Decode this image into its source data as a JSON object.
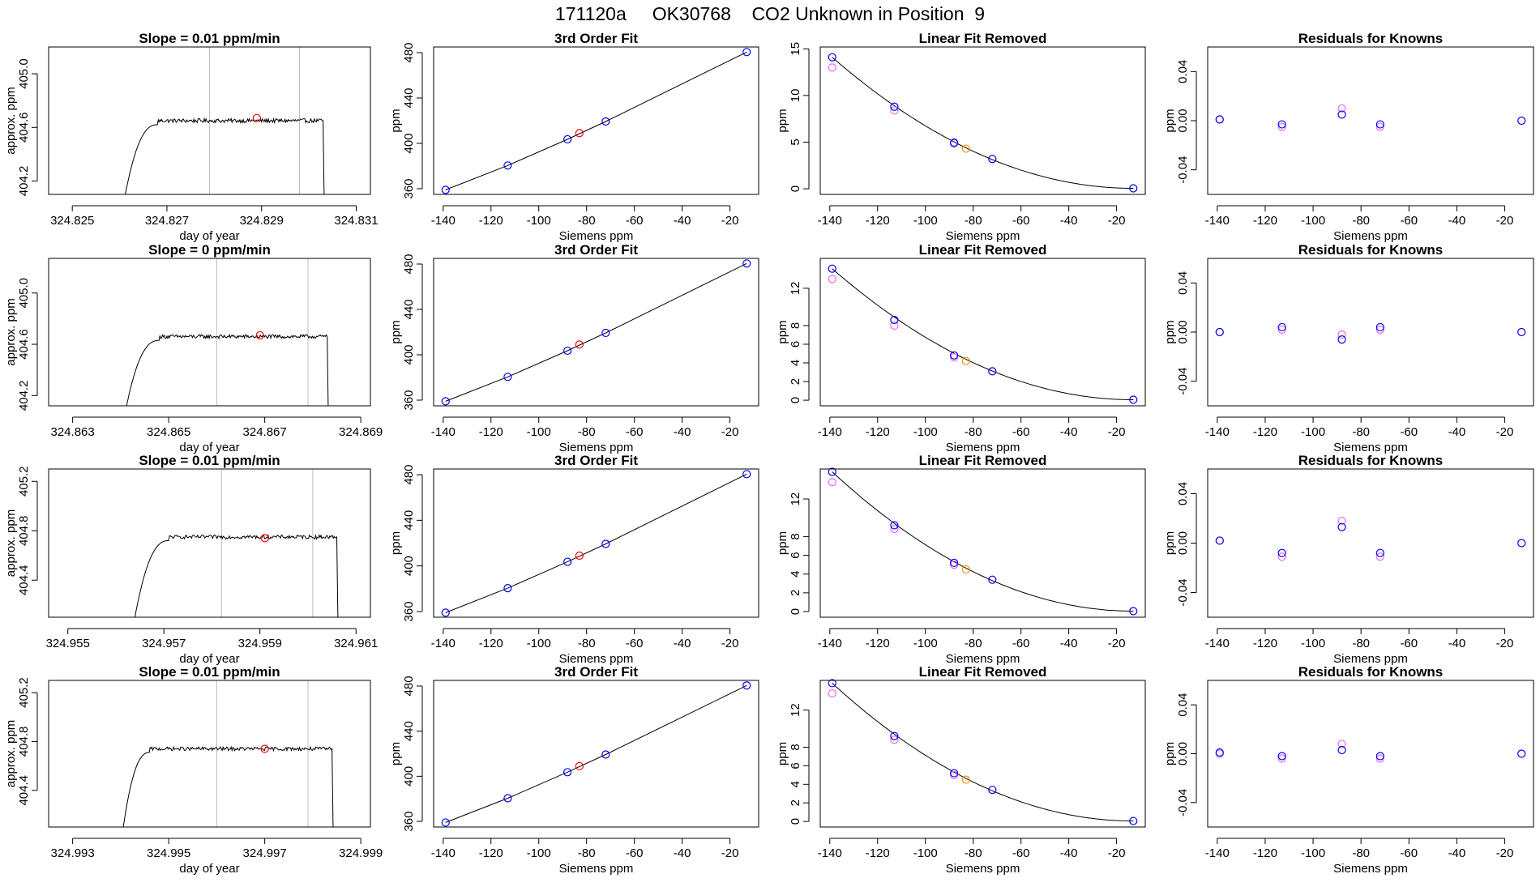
{
  "figure_title": "171120a     OK30768    CO2 Unknown in Position  9",
  "colors": {
    "trace": "#000000",
    "vline": "#bebebe",
    "marker_red": "#ff0000",
    "known": "#0000ff",
    "magenta": "#ee66ee",
    "orange": "#ff8c00"
  },
  "chart_data": [
    {
      "type": "line",
      "panel": "row1-time",
      "title": "Slope =  0.01  ppm/min",
      "xlabel": "day of year",
      "ylabel": "approx. ppm",
      "xlim": [
        324.8245,
        324.8313
      ],
      "ylim": [
        404.1,
        405.2
      ],
      "xticks": [
        324.825,
        324.827,
        324.829,
        324.831
      ],
      "xticklabels": [
        "324.825",
        "324.827",
        "324.829",
        "324.831"
      ],
      "yticks": [
        404.2,
        404.6,
        405.0
      ],
      "yticklabels": [
        "404.2",
        "404.6",
        "405.0"
      ],
      "vlines": [
        324.8279,
        324.8298
      ],
      "trace": {
        "start": 324.8259,
        "rise_end": 324.8268,
        "end": 324.8303,
        "plateau": 404.65,
        "noise": 0.015
      },
      "marker": {
        "x": 324.8289,
        "y": 404.67
      }
    },
    {
      "type": "line",
      "panel": "row2-time",
      "title": "Slope =  0  ppm/min",
      "xlabel": "day of year",
      "ylabel": "approx. ppm",
      "xlim": [
        324.8625,
        324.8692
      ],
      "ylim": [
        404.12,
        405.27
      ],
      "xticks": [
        324.863,
        324.865,
        324.867,
        324.869
      ],
      "xticklabels": [
        "324.863",
        "324.865",
        "324.867",
        "324.869"
      ],
      "yticks": [
        404.2,
        404.6,
        405.0
      ],
      "yticklabels": [
        "404.2",
        "404.6",
        "405.0"
      ],
      "vlines": [
        324.866,
        324.8679
      ],
      "trace": {
        "start": 324.8639,
        "rise_end": 324.8648,
        "end": 324.8683,
        "plateau": 404.66,
        "noise": 0.015
      },
      "marker": {
        "x": 324.8669,
        "y": 404.67
      }
    },
    {
      "type": "line",
      "panel": "row3-time",
      "title": "Slope =  0.01  ppm/min",
      "xlabel": "day of year",
      "ylabel": "approx. ppm",
      "xlim": [
        324.9546,
        324.9613
      ],
      "ylim": [
        404.1,
        405.3
      ],
      "xticks": [
        324.955,
        324.957,
        324.959,
        324.961
      ],
      "xticklabels": [
        "324.955",
        "324.957",
        "324.959",
        "324.961"
      ],
      "yticks": [
        404.4,
        404.8,
        405.2
      ],
      "yticklabels": [
        "404.4",
        "404.8",
        "405.2"
      ],
      "vlines": [
        324.9582,
        324.9601
      ],
      "trace": {
        "start": 324.9562,
        "rise_end": 324.9571,
        "end": 324.9606,
        "plateau": 404.75,
        "noise": 0.015
      },
      "marker": {
        "x": 324.9591,
        "y": 404.74
      }
    },
    {
      "type": "line",
      "panel": "row4-time",
      "title": "Slope =  0.01  ppm/min",
      "xlabel": "day of year",
      "ylabel": "approx. ppm",
      "xlim": [
        324.9925,
        324.9992
      ],
      "ylim": [
        404.1,
        405.3
      ],
      "xticks": [
        324.993,
        324.995,
        324.997,
        324.999
      ],
      "xticklabels": [
        "324.993",
        "324.995",
        "324.997",
        "324.999"
      ],
      "yticks": [
        404.4,
        404.8,
        405.2
      ],
      "yticklabels": [
        "404.4",
        "404.8",
        "405.2"
      ],
      "vlines": [
        324.996,
        324.9979
      ],
      "trace": {
        "start": 324.9939,
        "rise_end": 324.9946,
        "end": 324.9984,
        "plateau": 404.74,
        "noise": 0.015
      },
      "marker": {
        "x": 324.997,
        "y": 404.74
      }
    },
    {
      "type": "scatter",
      "panel": "row1-fit",
      "title": "3rd Order Fit",
      "xlabel": "Siemens ppm",
      "ylabel": "ppm",
      "xlim": [
        -144,
        -8
      ],
      "ylim": [
        355,
        485
      ],
      "xticks": [
        -140,
        -120,
        -100,
        -80,
        -60,
        -40,
        -20
      ],
      "xticklabels": [
        "-140",
        "-120",
        "-100",
        "-80",
        "-60",
        "-40",
        "-20"
      ],
      "yticks": [
        360,
        400,
        440,
        480
      ],
      "yticklabels": [
        "360",
        "400",
        "440",
        "480"
      ],
      "curve": {
        "x": [
          -139,
          -113,
          -88,
          -72,
          -13
        ],
        "y": [
          359,
          380.5,
          403.6,
          419.3,
          480.5
        ]
      },
      "points_blue": {
        "x": [
          -139,
          -113,
          -88,
          -72,
          -13
        ],
        "y": [
          359,
          380.5,
          403.6,
          419.3,
          480.5
        ]
      },
      "point_red": {
        "x": -83,
        "y": 409
      }
    },
    {
      "type": "scatter",
      "panel": "row2-fit",
      "title": "3rd Order Fit",
      "xlabel": "Siemens ppm",
      "ylabel": "ppm",
      "xlim": [
        -144,
        -8
      ],
      "ylim": [
        355,
        485
      ],
      "xticks": [
        -140,
        -120,
        -100,
        -80,
        -60,
        -40,
        -20
      ],
      "xticklabels": [
        "-140",
        "-120",
        "-100",
        "-80",
        "-60",
        "-40",
        "-20"
      ],
      "yticks": [
        360,
        400,
        440,
        480
      ],
      "yticklabels": [
        "360",
        "400",
        "440",
        "480"
      ],
      "curve": {
        "x": [
          -139,
          -113,
          -88,
          -72,
          -13
        ],
        "y": [
          359,
          380.5,
          403.6,
          419.3,
          480.5
        ]
      },
      "points_blue": {
        "x": [
          -139,
          -113,
          -88,
          -72,
          -13
        ],
        "y": [
          359,
          380.5,
          403.6,
          419.3,
          480.5
        ]
      },
      "point_red": {
        "x": -83,
        "y": 409
      }
    },
    {
      "type": "scatter",
      "panel": "row3-fit",
      "title": "3rd Order Fit",
      "xlabel": "Siemens ppm",
      "ylabel": "ppm",
      "xlim": [
        -144,
        -8
      ],
      "ylim": [
        355,
        485
      ],
      "xticks": [
        -140,
        -120,
        -100,
        -80,
        -60,
        -40,
        -20
      ],
      "xticklabels": [
        "-140",
        "-120",
        "-100",
        "-80",
        "-60",
        "-40",
        "-20"
      ],
      "yticks": [
        360,
        400,
        440,
        480
      ],
      "yticklabels": [
        "360",
        "400",
        "440",
        "480"
      ],
      "curve": {
        "x": [
          -139,
          -113,
          -88,
          -72,
          -13
        ],
        "y": [
          359,
          380.5,
          403.6,
          419.3,
          480.5
        ]
      },
      "points_blue": {
        "x": [
          -139,
          -113,
          -88,
          -72,
          -13
        ],
        "y": [
          359,
          380.5,
          403.6,
          419.3,
          480.5
        ]
      },
      "point_red": {
        "x": -83,
        "y": 409
      }
    },
    {
      "type": "scatter",
      "panel": "row4-fit",
      "title": "3rd Order Fit",
      "xlabel": "Siemens ppm",
      "ylabel": "ppm",
      "xlim": [
        -144,
        -8
      ],
      "ylim": [
        355,
        485
      ],
      "xticks": [
        -140,
        -120,
        -100,
        -80,
        -60,
        -40,
        -20
      ],
      "xticklabels": [
        "-140",
        "-120",
        "-100",
        "-80",
        "-60",
        "-40",
        "-20"
      ],
      "yticks": [
        360,
        400,
        440,
        480
      ],
      "yticklabels": [
        "360",
        "400",
        "440",
        "480"
      ],
      "curve": {
        "x": [
          -139,
          -113,
          -88,
          -72,
          -13
        ],
        "y": [
          359,
          380.5,
          403.6,
          419.3,
          480.5
        ]
      },
      "points_blue": {
        "x": [
          -139,
          -113,
          -88,
          -72,
          -13
        ],
        "y": [
          359,
          380.5,
          403.6,
          419.3,
          480.5
        ]
      },
      "point_red": {
        "x": -83,
        "y": 409
      }
    },
    {
      "type": "scatter",
      "panel": "row1-linres",
      "title": "Linear Fit Removed",
      "xlabel": "Siemens ppm",
      "ylabel": "ppm",
      "xlim": [
        -144,
        -8
      ],
      "ylim": [
        -0.6,
        15.2
      ],
      "xticks": [
        -140,
        -120,
        -100,
        -80,
        -60,
        -40,
        -20
      ],
      "xticklabels": [
        "-140",
        "-120",
        "-100",
        "-80",
        "-60",
        "-40",
        "-20"
      ],
      "yticks": [
        0,
        5,
        10,
        15
      ],
      "yticklabels": [
        "0",
        "5",
        "10",
        "15"
      ],
      "curve": {
        "x0": -139,
        "y0": 14.1,
        "x1": -13,
        "y1": 0.05,
        "power": 2
      },
      "points_blue": {
        "x": [
          -139,
          -113,
          -88,
          -72,
          -13
        ],
        "y": [
          14.1,
          8.8,
          4.9,
          3.2,
          0.05
        ]
      },
      "points_magenta": {
        "x": [
          -139,
          -113,
          -88
        ],
        "y": [
          13.0,
          8.4,
          5.0
        ]
      },
      "point_orange": {
        "x": -83,
        "y": 4.3
      }
    },
    {
      "type": "scatter",
      "panel": "row2-linres",
      "title": "Linear Fit Removed",
      "xlabel": "Siemens ppm",
      "ylabel": "ppm",
      "xlim": [
        -144,
        -8
      ],
      "ylim": [
        -0.6,
        15.2
      ],
      "xticks": [
        -140,
        -120,
        -100,
        -80,
        -60,
        -40,
        -20
      ],
      "xticklabels": [
        "-140",
        "-120",
        "-100",
        "-80",
        "-60",
        "-40",
        "-20"
      ],
      "yticks": [
        0,
        2,
        4,
        6,
        8,
        12
      ],
      "yticklabels": [
        "0",
        "2",
        "4",
        "6",
        "8",
        "12"
      ],
      "curve": {
        "x0": -139,
        "y0": 14.1,
        "x1": -13,
        "y1": 0.05,
        "power": 2
      },
      "points_blue": {
        "x": [
          -139,
          -113,
          -88,
          -72,
          -13
        ],
        "y": [
          14.1,
          8.6,
          4.8,
          3.1,
          0.05
        ]
      },
      "points_magenta": {
        "x": [
          -139,
          -113,
          -88
        ],
        "y": [
          13.0,
          8.0,
          4.6
        ]
      },
      "point_orange": {
        "x": -83,
        "y": 4.2
      }
    },
    {
      "type": "scatter",
      "panel": "row3-linres",
      "title": "Linear Fit Removed",
      "xlabel": "Siemens ppm",
      "ylabel": "ppm",
      "xlim": [
        -144,
        -8
      ],
      "ylim": [
        -0.6,
        15.2
      ],
      "xticks": [
        -140,
        -120,
        -100,
        -80,
        -60,
        -40,
        -20
      ],
      "xticklabels": [
        "-140",
        "-120",
        "-100",
        "-80",
        "-60",
        "-40",
        "-20"
      ],
      "yticks": [
        0,
        2,
        4,
        6,
        8,
        12
      ],
      "yticklabels": [
        "0",
        "2",
        "4",
        "6",
        "8",
        "12"
      ],
      "curve": {
        "x0": -139,
        "y0": 14.9,
        "x1": -13,
        "y1": 0.05,
        "power": 2
      },
      "points_blue": {
        "x": [
          -139,
          -113,
          -88,
          -72,
          -13
        ],
        "y": [
          14.9,
          9.2,
          5.2,
          3.4,
          0.05
        ]
      },
      "points_magenta": {
        "x": [
          -139,
          -113,
          -88
        ],
        "y": [
          13.8,
          8.8,
          5.0
        ]
      },
      "point_orange": {
        "x": -83,
        "y": 4.5
      }
    },
    {
      "type": "scatter",
      "panel": "row4-linres",
      "title": "Linear Fit Removed",
      "xlabel": "Siemens ppm",
      "ylabel": "ppm",
      "xlim": [
        -144,
        -8
      ],
      "ylim": [
        -0.6,
        15.2
      ],
      "xticks": [
        -140,
        -120,
        -100,
        -80,
        -60,
        -40,
        -20
      ],
      "xticklabels": [
        "-140",
        "-120",
        "-100",
        "-80",
        "-60",
        "-40",
        "-20"
      ],
      "yticks": [
        0,
        2,
        4,
        6,
        8,
        12
      ],
      "yticklabels": [
        "0",
        "2",
        "4",
        "6",
        "8",
        "12"
      ],
      "curve": {
        "x0": -139,
        "y0": 14.9,
        "x1": -13,
        "y1": 0.05,
        "power": 2
      },
      "points_blue": {
        "x": [
          -139,
          -113,
          -88,
          -72,
          -13
        ],
        "y": [
          14.9,
          9.2,
          5.2,
          3.4,
          0.05
        ]
      },
      "points_magenta": {
        "x": [
          -139,
          -113,
          -88
        ],
        "y": [
          13.8,
          8.8,
          5.0
        ]
      },
      "point_orange": {
        "x": -83,
        "y": 4.5
      }
    },
    {
      "type": "scatter",
      "panel": "row1-resid",
      "title": "Residuals for Knowns",
      "xlabel": "Siemens ppm",
      "ylabel": "ppm",
      "xlim": [
        -144,
        -8
      ],
      "ylim": [
        -0.06,
        0.06
      ],
      "xticks": [
        -140,
        -120,
        -100,
        -80,
        -60,
        -40,
        -20
      ],
      "xticklabels": [
        "-140",
        "-120",
        "-100",
        "-80",
        "-60",
        "-40",
        "-20"
      ],
      "yticks": [
        -0.04,
        0.0,
        0.04
      ],
      "yticklabels": [
        "-0.04",
        "0.00",
        "0.04"
      ],
      "points_blue": {
        "x": [
          -139,
          -113,
          -88,
          -72,
          -13
        ],
        "y": [
          0.001,
          -0.003,
          0.005,
          -0.003,
          0.0
        ]
      },
      "points_magenta": {
        "x": [
          -139,
          -113,
          -88,
          -72
        ],
        "y": [
          0.001,
          -0.005,
          0.01,
          -0.005
        ]
      }
    },
    {
      "type": "scatter",
      "panel": "row2-resid",
      "title": "Residuals for Knowns",
      "xlabel": "Siemens ppm",
      "ylabel": "ppm",
      "xlim": [
        -144,
        -8
      ],
      "ylim": [
        -0.06,
        0.06
      ],
      "xticks": [
        -140,
        -120,
        -100,
        -80,
        -60,
        -40,
        -20
      ],
      "xticklabels": [
        "-140",
        "-120",
        "-100",
        "-80",
        "-60",
        "-40",
        "-20"
      ],
      "yticks": [
        -0.04,
        0.0,
        0.04
      ],
      "yticklabels": [
        "-0.04",
        "0.00",
        "0.04"
      ],
      "points_blue": {
        "x": [
          -139,
          -113,
          -88,
          -72,
          -13
        ],
        "y": [
          0.0,
          0.004,
          -0.006,
          0.004,
          0.0
        ]
      },
      "points_magenta": {
        "x": [
          -139,
          -113,
          -88,
          -72
        ],
        "y": [
          0.0,
          0.002,
          -0.002,
          0.002
        ]
      }
    },
    {
      "type": "scatter",
      "panel": "row3-resid",
      "title": "Residuals for Knowns",
      "xlabel": "Siemens ppm",
      "ylabel": "ppm",
      "xlim": [
        -144,
        -8
      ],
      "ylim": [
        -0.06,
        0.06
      ],
      "xticks": [
        -140,
        -120,
        -100,
        -80,
        -60,
        -40,
        -20
      ],
      "xticklabels": [
        "-140",
        "-120",
        "-100",
        "-80",
        "-60",
        "-40",
        "-20"
      ],
      "yticks": [
        -0.04,
        0.0,
        0.04
      ],
      "yticklabels": [
        "-0.04",
        "0.00",
        "0.04"
      ],
      "points_blue": {
        "x": [
          -139,
          -113,
          -88,
          -72,
          -13
        ],
        "y": [
          0.002,
          -0.008,
          0.013,
          -0.008,
          0.0
        ]
      },
      "points_magenta": {
        "x": [
          -139,
          -113,
          -88,
          -72
        ],
        "y": [
          0.002,
          -0.011,
          0.018,
          -0.011
        ]
      }
    },
    {
      "type": "scatter",
      "panel": "row4-resid",
      "title": "Residuals for Knowns",
      "xlabel": "Siemens ppm",
      "ylabel": "ppm",
      "xlim": [
        -144,
        -8
      ],
      "ylim": [
        -0.06,
        0.06
      ],
      "xticks": [
        -140,
        -120,
        -100,
        -80,
        -60,
        -40,
        -20
      ],
      "xticklabels": [
        "-140",
        "-120",
        "-100",
        "-80",
        "-60",
        "-40",
        "-20"
      ],
      "yticks": [
        -0.04,
        0.0,
        0.04
      ],
      "yticklabels": [
        "-0.04",
        "0.00",
        "0.04"
      ],
      "points_blue": {
        "x": [
          -139,
          -113,
          -88,
          -72,
          -13
        ],
        "y": [
          0.001,
          -0.002,
          0.003,
          -0.002,
          0.0
        ]
      },
      "points_magenta": {
        "x": [
          -139,
          -113,
          -88,
          -72
        ],
        "y": [
          0.0,
          -0.004,
          0.008,
          -0.004
        ]
      }
    }
  ]
}
